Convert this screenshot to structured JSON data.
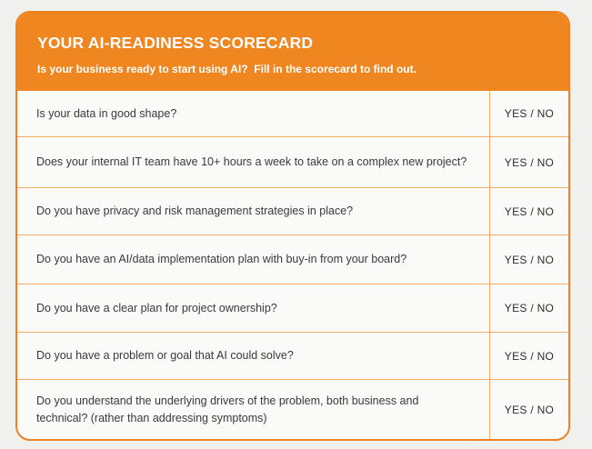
{
  "theme": {
    "accent_orange": "#F0861F",
    "border_orange": "#EE8023",
    "divider_orange": "#F5AB60",
    "page_background": "#F0F0EE",
    "card_background": "#FAFAF9"
  },
  "header": {
    "title": "YOUR AI-READINESS SCORECARD",
    "subtitle": "Is your business ready to start using AI?  Fill in the scorecard to find out."
  },
  "scorecard": {
    "answer_label": "YES / NO",
    "questions": [
      "Is your data in good shape?",
      "Does your internal IT team have 10+ hours a week to take on a complex new project?",
      "Do you have privacy and risk management strategies in place?",
      "Do you have an AI/data implementation plan with buy-in from your board?",
      "Do you have a clear plan for project ownership?",
      "Do you have a problem or goal that AI could solve?",
      "Do you understand the underlying drivers of the problem, both business and technical? (rather than addressing symptoms)"
    ]
  }
}
